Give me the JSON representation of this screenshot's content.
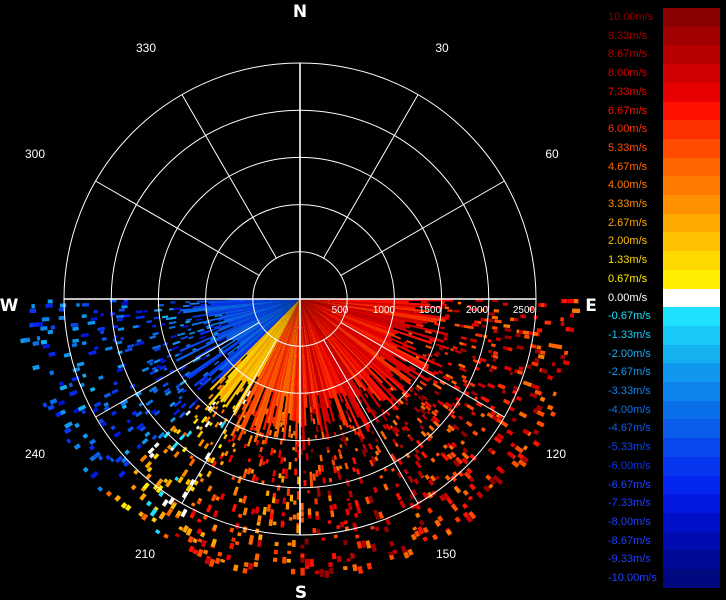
{
  "chart_data": {
    "type": "polar-radar",
    "cardinals": {
      "north": "N",
      "east": "E",
      "south": "S",
      "west": "W"
    },
    "azimuth_labels": [
      "30",
      "60",
      "120",
      "150",
      "210",
      "240",
      "300",
      "330"
    ],
    "range_ticks": [
      "500",
      "1000",
      "1500",
      "2000",
      "2500"
    ],
    "range_max": 2500,
    "colorbar": {
      "labels": [
        "10.00m/s",
        "9.33m/s",
        "8.67m/s",
        "8.00m/s",
        "7.33m/s",
        "6.67m/s",
        "6.00m/s",
        "5.33m/s",
        "4.67m/s",
        "4.00m/s",
        "3.33m/s",
        "2.67m/s",
        "2.00m/s",
        "1.33m/s",
        "0.67m/s",
        "0.00m/s",
        "-0.67m/s",
        "-1.33m/s",
        "-2.00m/s",
        "-2.67m/s",
        "-3.33m/s",
        "-4.00m/s",
        "-4.67m/s",
        "-5.33m/s",
        "-6.00m/s",
        "-6.67m/s",
        "-7.33m/s",
        "-8.00m/s",
        "-8.67m/s",
        "-9.33m/s",
        "-10.00m/s"
      ],
      "colors": [
        "#8b0000",
        "#a00000",
        "#b80000",
        "#d00000",
        "#e80000",
        "#ff1000",
        "#ff3000",
        "#ff4c00",
        "#ff6600",
        "#ff7a00",
        "#ff9000",
        "#ffa800",
        "#ffc000",
        "#ffd800",
        "#ffee00",
        "#ffffff",
        "#1ee0ff",
        "#18c8f8",
        "#14b0f0",
        "#1098ee",
        "#0c84ec",
        "#0a70ea",
        "#0a5cea",
        "#0848ec",
        "#0636ee",
        "#0426f0",
        "#0218e0",
        "#0010c8",
        "#000cb0",
        "#000a98",
        "#000880"
      ]
    },
    "sectors": [
      {
        "az_start": 180,
        "az_end": 208,
        "velocity": 5.5
      },
      {
        "az_start": 208,
        "az_end": 225,
        "velocity": 2.0
      },
      {
        "az_start": 225,
        "az_end": 270,
        "velocity": -5.0
      },
      {
        "az_start": 90,
        "az_end": 180,
        "velocity": 7.0
      }
    ]
  }
}
